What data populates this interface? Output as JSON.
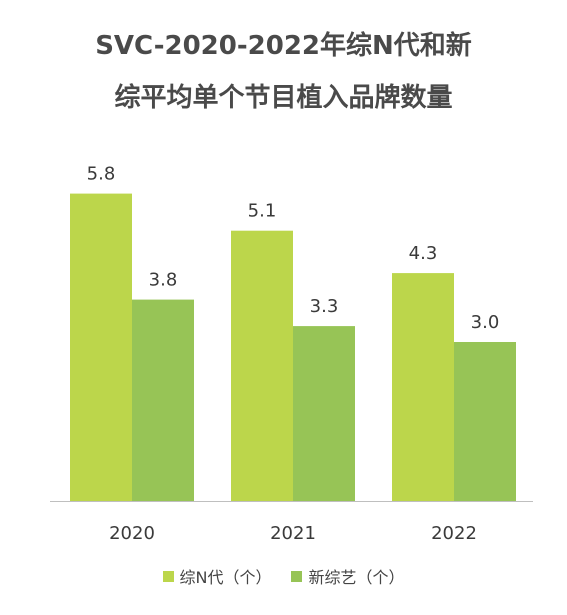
{
  "chart_data": {
    "type": "bar",
    "title_lines": [
      "SVC-2020-2022年综N代和新",
      "综平均单个节目植入品牌数量"
    ],
    "categories": [
      "2020",
      "2021",
      "2022"
    ],
    "series": [
      {
        "name": "综N代（个）",
        "values": [
          5.8,
          5.1,
          4.3
        ],
        "color": "#bcd64b"
      },
      {
        "name": "新综艺（个）",
        "values": [
          3.8,
          3.3,
          3.0
        ],
        "color": "#97c456"
      }
    ],
    "value_labels": {
      "综N代（个）": [
        "5.8",
        "5.1",
        "4.3"
      ],
      "新综艺（个）": [
        "3.8",
        "3.3",
        "3.0"
      ]
    },
    "ylim": [
      0,
      7
    ],
    "grid": false,
    "legend_position": "bottom"
  }
}
